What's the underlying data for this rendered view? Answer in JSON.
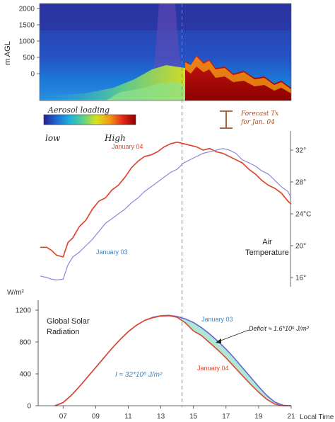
{
  "chart_data": [
    {
      "type": "heatmap",
      "ylabel": "m AGL",
      "yticks": [
        0,
        500,
        1000,
        1500,
        2000
      ],
      "colorbar": {
        "title": "Aerosol loading",
        "low_label": "low",
        "high_label": "High",
        "colors": [
          "#2a1f8f",
          "#1f6bd6",
          "#1fb3d9",
          "#5fd08a",
          "#d7e21e",
          "#f29a15",
          "#e0291b",
          "#8c0000"
        ]
      },
      "forecast_label": "Forecast Tx for Jan. 04"
    },
    {
      "type": "line",
      "title": "Air Temperature",
      "yticks": [
        16,
        20,
        24,
        28,
        32
      ],
      "ytick_labels": [
        "16°",
        "20°",
        "24°C",
        "28°",
        "32°"
      ],
      "ylim": [
        15.2,
        34.5
      ],
      "xlim": [
        5.6,
        21.0
      ],
      "series": [
        {
          "name": "January 04",
          "color": "#e0462e",
          "x": [
            5.6,
            6.0,
            6.3,
            6.6,
            7.0,
            7.3,
            7.6,
            8.0,
            8.4,
            8.8,
            9.2,
            9.6,
            10.0,
            10.4,
            10.8,
            11.2,
            11.6,
            12.0,
            12.4,
            12.8,
            13.2,
            13.6,
            14.0,
            14.4,
            14.8,
            15.2,
            15.6,
            16.0,
            16.4,
            16.8,
            17.2,
            17.6,
            18.0,
            18.4,
            18.8,
            19.2,
            19.6,
            20.0,
            20.4,
            20.8,
            21.0
          ],
          "y": [
            19.8,
            19.8,
            19.4,
            18.8,
            18.6,
            20.4,
            21.0,
            22.4,
            23.2,
            24.6,
            25.6,
            26.0,
            27.0,
            27.6,
            28.6,
            29.8,
            30.6,
            31.2,
            31.4,
            31.8,
            32.4,
            32.8,
            33.0,
            32.8,
            32.6,
            32.4,
            32.0,
            32.2,
            31.8,
            31.6,
            31.2,
            30.8,
            30.4,
            29.6,
            29.0,
            28.2,
            27.6,
            27.2,
            26.6,
            25.6,
            25.2
          ]
        },
        {
          "name": "January 03",
          "color": "#8e84d8",
          "x": [
            5.6,
            6.0,
            6.3,
            6.6,
            7.0,
            7.3,
            7.6,
            8.0,
            8.4,
            8.8,
            9.2,
            9.6,
            10.0,
            10.4,
            10.8,
            11.2,
            11.6,
            12.0,
            12.4,
            12.8,
            13.2,
            13.6,
            14.0,
            14.4,
            14.8,
            15.2,
            15.6,
            16.0,
            16.4,
            16.8,
            17.2,
            17.6,
            18.0,
            18.4,
            18.8,
            19.2,
            19.6,
            20.0,
            20.4,
            20.8,
            21.0
          ],
          "y": [
            16.2,
            16.0,
            15.8,
            15.7,
            15.8,
            17.6,
            18.6,
            19.2,
            20.0,
            20.8,
            21.8,
            22.8,
            23.4,
            24.0,
            24.6,
            25.4,
            26.0,
            26.8,
            27.4,
            28.0,
            28.6,
            29.2,
            29.6,
            30.4,
            30.8,
            31.2,
            31.6,
            31.8,
            32.0,
            32.2,
            32.0,
            31.6,
            30.8,
            30.4,
            30.0,
            29.4,
            29.0,
            28.2,
            27.4,
            26.8,
            26.0
          ]
        }
      ]
    },
    {
      "type": "area",
      "title": "Global Solar Radiation",
      "unit_label": "W/m²",
      "xlabel": "Local Time",
      "yticks": [
        0,
        400,
        800,
        1200
      ],
      "xticks": [
        7,
        9,
        11,
        13,
        15,
        17,
        19,
        21
      ],
      "xtick_labels": [
        "07",
        "09",
        "11",
        "13",
        "15",
        "17",
        "19",
        "21"
      ],
      "ylim": [
        0,
        1360
      ],
      "xlim": [
        5.6,
        21.0
      ],
      "series": [
        {
          "name": "January 03",
          "color": "#6a63d6",
          "x": [
            6.5,
            7.0,
            7.5,
            8.0,
            8.5,
            9.0,
            9.5,
            10.0,
            10.5,
            11.0,
            11.5,
            12.0,
            12.5,
            13.0,
            13.5,
            14.0,
            14.5,
            15.0,
            15.5,
            16.0,
            16.5,
            17.0,
            17.5,
            18.0,
            18.5,
            19.0,
            19.5,
            20.0,
            20.5,
            21.0
          ],
          "y": [
            0,
            40,
            130,
            240,
            360,
            480,
            600,
            720,
            830,
            930,
            1010,
            1070,
            1110,
            1130,
            1135,
            1120,
            1090,
            1045,
            980,
            900,
            810,
            710,
            600,
            480,
            360,
            240,
            130,
            45,
            5,
            0
          ]
        },
        {
          "name": "January 04",
          "color": "#e0462e",
          "x": [
            6.5,
            7.0,
            7.5,
            8.0,
            8.5,
            9.0,
            9.5,
            10.0,
            10.5,
            11.0,
            11.5,
            12.0,
            12.5,
            13.0,
            13.5,
            14.0,
            14.5,
            15.0,
            15.5,
            16.0,
            16.5,
            17.0,
            17.5,
            18.0,
            18.5,
            19.0,
            19.5,
            20.0,
            20.5,
            21.0
          ],
          "y": [
            0,
            40,
            130,
            240,
            360,
            480,
            600,
            720,
            830,
            930,
            1010,
            1070,
            1105,
            1125,
            1130,
            1110,
            1040,
            940,
            880,
            790,
            700,
            600,
            490,
            380,
            270,
            170,
            80,
            20,
            0,
            0
          ]
        }
      ],
      "annotations": {
        "integral": "I ≈ 32*10⁶ J/m²",
        "deficit": "Deficit ≈ 1.6*10⁶ J/m²"
      },
      "reference_time": 14.3
    }
  ]
}
